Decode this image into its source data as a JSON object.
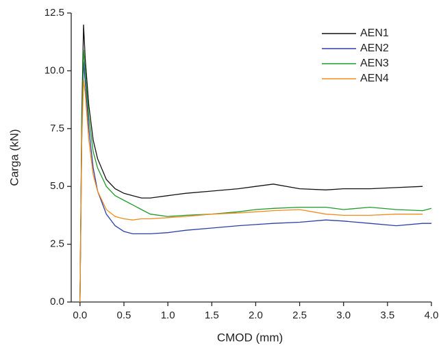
{
  "chart_data": {
    "type": "line",
    "x_label": "CMOD (mm)",
    "y_label": "Carga (kN)",
    "xlim": [
      -0.1,
      4.0
    ],
    "ylim": [
      0,
      12.5
    ],
    "xticks": [
      {
        "value": 0,
        "label": "0.0"
      },
      0.5,
      {
        "value": 1,
        "label": "1.0"
      },
      1.5,
      {
        "value": 2,
        "label": "2.0"
      },
      2.5,
      {
        "value": 3,
        "label": "3.0"
      },
      3.5,
      {
        "value": 4,
        "label": "4.0"
      }
    ],
    "yticks": [
      {
        "value": 0,
        "label": "0.0"
      },
      2.5,
      {
        "value": 5,
        "label": "5.0"
      },
      7.5,
      {
        "value": 10,
        "label": "10.0"
      },
      12.5
    ],
    "legend": "top-right",
    "x": [
      0,
      0.02,
      0.04,
      0.06,
      0.1,
      0.15,
      0.2,
      0.3,
      0.4,
      0.5,
      0.6,
      0.7,
      0.8,
      1.0,
      1.2,
      1.5,
      1.8,
      2.0,
      2.2,
      2.5,
      2.8,
      3.0,
      3.3,
      3.6,
      3.9,
      4.0
    ],
    "series": [
      {
        "name": "AEN1",
        "color": "#111111",
        "values": [
          0,
          8,
          12.0,
          10.5,
          8.5,
          7,
          6.2,
          5.3,
          4.9,
          4.7,
          4.6,
          4.5,
          4.5,
          4.6,
          4.7,
          4.8,
          4.9,
          5.0,
          5.1,
          4.9,
          4.85,
          4.9,
          4.9,
          4.95,
          5.0,
          null
        ]
      },
      {
        "name": "AEN2",
        "color": "#2a3ea8",
        "values": [
          0,
          7,
          10.4,
          9.5,
          7.5,
          5.8,
          4.8,
          3.8,
          3.3,
          3.05,
          2.95,
          2.95,
          2.95,
          3.0,
          3.1,
          3.2,
          3.3,
          3.35,
          3.4,
          3.45,
          3.55,
          3.5,
          3.4,
          3.3,
          3.4,
          3.4
        ]
      },
      {
        "name": "AEN3",
        "color": "#1f9a2a",
        "values": [
          0,
          7.5,
          10.9,
          10.0,
          8.0,
          6.5,
          5.8,
          5.0,
          4.6,
          4.4,
          4.2,
          4.0,
          3.8,
          3.7,
          3.75,
          3.8,
          3.9,
          4.0,
          4.05,
          4.1,
          4.1,
          4.0,
          4.1,
          4.0,
          3.95,
          4.05
        ]
      },
      {
        "name": "AEN4",
        "color": "#f28a1c",
        "values": [
          0,
          7,
          9.6,
          9.0,
          7.0,
          5.5,
          4.8,
          4.0,
          3.7,
          3.6,
          3.55,
          3.6,
          3.6,
          3.65,
          3.7,
          3.8,
          3.85,
          3.9,
          3.95,
          4.0,
          3.8,
          3.75,
          3.75,
          3.8,
          3.8,
          null
        ]
      }
    ]
  }
}
